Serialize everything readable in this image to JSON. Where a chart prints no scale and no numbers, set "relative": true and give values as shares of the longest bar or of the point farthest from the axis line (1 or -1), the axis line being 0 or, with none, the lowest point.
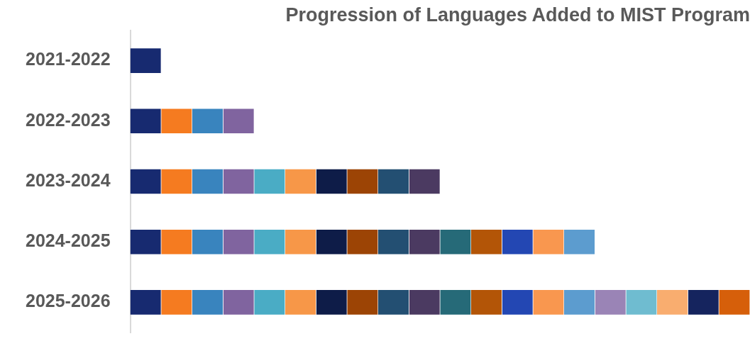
{
  "chart_data": {
    "type": "bar",
    "orientation": "horizontal",
    "stacked": true,
    "relative": true,
    "title": "Progression of Languages Added to MIST Program",
    "categories": [
      "2021-2022",
      "2022-2023",
      "2023-2024",
      "2024-2025",
      "2025-2026"
    ],
    "series": [
      {
        "color": "#172a70",
        "values": [
          0.05,
          0.05,
          0.05,
          0.05,
          0.05
        ]
      },
      {
        "color": "#f57b20",
        "values": [
          null,
          0.05,
          0.05,
          0.05,
          0.05
        ]
      },
      {
        "color": "#3984be",
        "values": [
          null,
          0.05,
          0.05,
          0.05,
          0.05
        ]
      },
      {
        "color": "#80649f",
        "values": [
          null,
          0.05,
          0.05,
          0.05,
          0.05
        ]
      },
      {
        "color": "#4aacc5",
        "values": [
          null,
          null,
          0.05,
          0.05,
          0.05
        ]
      },
      {
        "color": "#f79748",
        "values": [
          null,
          null,
          0.05,
          0.05,
          0.05
        ]
      },
      {
        "color": "#0e1c48",
        "values": [
          null,
          null,
          0.05,
          0.05,
          0.05
        ]
      },
      {
        "color": "#9c4405",
        "values": [
          null,
          null,
          0.05,
          0.05,
          0.05
        ]
      },
      {
        "color": "#234f72",
        "values": [
          null,
          null,
          0.05,
          0.05,
          0.05
        ]
      },
      {
        "color": "#4b3a61",
        "values": [
          null,
          null,
          0.05,
          0.05,
          0.05
        ]
      },
      {
        "color": "#266a78",
        "values": [
          null,
          null,
          null,
          0.05,
          0.05
        ]
      },
      {
        "color": "#b35507",
        "values": [
          null,
          null,
          null,
          0.05,
          0.05
        ]
      },
      {
        "color": "#2347b3",
        "values": [
          null,
          null,
          null,
          0.05,
          0.05
        ]
      },
      {
        "color": "#f9974f",
        "values": [
          null,
          null,
          null,
          0.05,
          0.05
        ]
      },
      {
        "color": "#5c9ccf",
        "values": [
          null,
          null,
          null,
          0.05,
          0.05
        ]
      },
      {
        "color": "#9a84b6",
        "values": [
          null,
          null,
          null,
          null,
          0.05
        ]
      },
      {
        "color": "#6fbcd0",
        "values": [
          null,
          null,
          null,
          null,
          0.05
        ]
      },
      {
        "color": "#f9ad6f",
        "values": [
          null,
          null,
          null,
          null,
          0.05
        ]
      },
      {
        "color": "#15245e",
        "values": [
          null,
          null,
          null,
          null,
          0.05
        ]
      },
      {
        "color": "#d65f0a",
        "values": [
          null,
          null,
          null,
          null,
          0.05
        ]
      }
    ]
  }
}
